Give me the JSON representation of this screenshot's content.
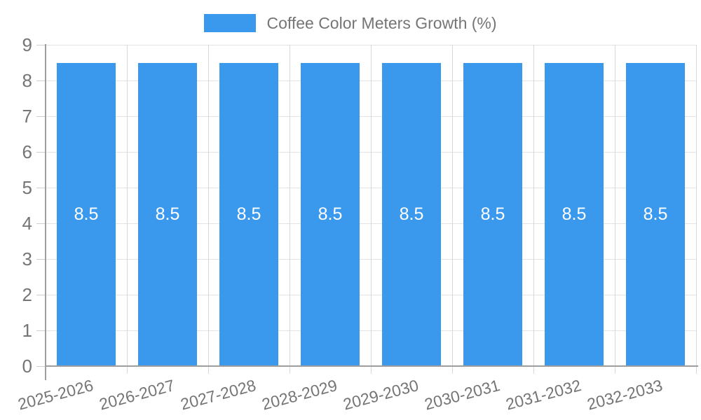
{
  "legend": {
    "label": "Coffee Color Meters Growth (%)"
  },
  "colors": {
    "bar": "#3A99EC",
    "bar_label": "#FFFFFF",
    "text": "#757575",
    "grid": "#E3E3E3",
    "vgrid": "#D9D9D9",
    "tick": "#CFCFCF",
    "axis": "#9E9E9E"
  },
  "chart_data": {
    "type": "bar",
    "title": "Coffee Color Meters Growth (%)",
    "categories": [
      "2025-2026",
      "2026-2027",
      "2027-2028",
      "2028-2029",
      "2029-2030",
      "2030-2031",
      "2031-2032",
      "2032-2033"
    ],
    "values": [
      8.5,
      8.5,
      8.5,
      8.5,
      8.5,
      8.5,
      8.5,
      8.5
    ],
    "bar_value_labels": [
      "8.5",
      "8.5",
      "8.5",
      "8.5",
      "8.5",
      "8.5",
      "8.5",
      "8.5"
    ],
    "xlabel": "",
    "ylabel": "",
    "ylim": [
      0,
      9
    ],
    "yticks": [
      0,
      1,
      2,
      3,
      4,
      5,
      6,
      7,
      8,
      9
    ],
    "grid": true,
    "legend_position": "top",
    "x_tick_rotation_deg": -15
  }
}
